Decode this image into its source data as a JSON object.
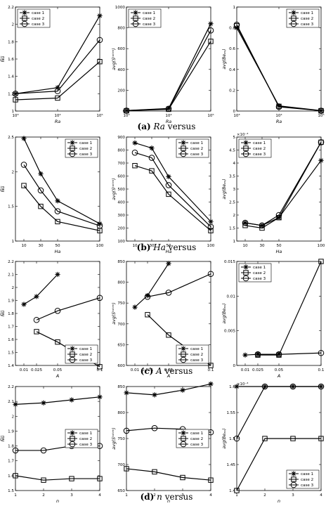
{
  "captions": [
    {
      "letter": "(a)",
      "var": "Ra",
      "rest": " versus"
    },
    {
      "letter": "(b)",
      "var": "Ha",
      "rest": " versus"
    },
    {
      "letter": "(c)",
      "var": "A",
      "rest": " versus"
    },
    {
      "letter": "(d)",
      "var": "n",
      "rest": " versus"
    }
  ],
  "legend_labels": [
    "case 1",
    "case 2",
    "case 3"
  ],
  "chart_data": [
    {
      "type": "line",
      "xscale": "log",
      "xlim": [
        1000,
        100000
      ],
      "ylim": [
        1,
        2.2
      ],
      "x": [
        1000,
        10000,
        100000
      ],
      "xticks": [
        1000,
        10000,
        100000
      ],
      "xticklabels": [
        "10³",
        "10⁴",
        "10⁵"
      ],
      "yticks": [
        1,
        1.2,
        1.4,
        1.6,
        1.8,
        2,
        2.2
      ],
      "yticklabels": [
        "1",
        "1.2",
        "1.4",
        "1.6",
        "1.8",
        "2",
        "2.2"
      ],
      "xlabel": "Ra",
      "ylabel": "N̅u̅",
      "legend": "top-left",
      "series": [
        {
          "name": "case 1",
          "values": [
            1.2,
            1.27,
            2.1
          ]
        },
        {
          "name": "case 2",
          "values": [
            1.13,
            1.15,
            1.57
          ]
        },
        {
          "name": "case 3",
          "values": [
            1.2,
            1.23,
            1.82
          ]
        }
      ]
    },
    {
      "type": "line",
      "xscale": "log",
      "xlim": [
        1000,
        100000
      ],
      "ylim": [
        0,
        1000
      ],
      "x": [
        1000,
        10000,
        100000
      ],
      "xticks": [
        1000,
        10000,
        100000
      ],
      "xticklabels": [
        "10³",
        "10⁴",
        "10⁵"
      ],
      "yticks": [
        0,
        200,
        400,
        600,
        800,
        1000
      ],
      "yticklabels": [
        "0",
        "200",
        "400",
        "600",
        "800",
        "1000"
      ],
      "xlabel": "Ra",
      "ylabel": "avg(Sᵗᵒᵗᵉⁿ)",
      "legend": "top-left",
      "series": [
        {
          "name": "case 1",
          "values": [
            5,
            25,
            840
          ]
        },
        {
          "name": "case 2",
          "values": [
            3,
            17,
            670
          ]
        },
        {
          "name": "case 3",
          "values": [
            4,
            22,
            775
          ]
        }
      ]
    },
    {
      "type": "line",
      "xscale": "log",
      "xlim": [
        1000,
        100000
      ],
      "ylim": [
        0,
        1
      ],
      "x": [
        1000,
        10000,
        100000
      ],
      "xticks": [
        1000,
        10000,
        100000
      ],
      "xticklabels": [
        "10³",
        "10⁴",
        "10⁵"
      ],
      "yticks": [
        0,
        0.2,
        0.4,
        0.6,
        0.8,
        1
      ],
      "yticklabels": [
        "0",
        "0.2",
        "0.4",
        "0.6",
        "0.8",
        "1"
      ],
      "xlabel": "Ra",
      "ylabel": "avg(Beₐᵥ)",
      "legend": "top-right",
      "series": [
        {
          "name": "case 1",
          "values": [
            0.8,
            0.05,
            0.004
          ]
        },
        {
          "name": "case 2",
          "values": [
            0.82,
            0.045,
            0.003
          ]
        },
        {
          "name": "case 3",
          "values": [
            0.83,
            0.04,
            0.003
          ]
        }
      ]
    },
    {
      "type": "line",
      "xscale": "linear",
      "xlim": [
        0,
        100
      ],
      "ylim": [
        1,
        2.5
      ],
      "x": [
        10,
        30,
        50,
        100
      ],
      "xticks": [
        10,
        30,
        50,
        100
      ],
      "xticklabels": [
        "10",
        "30",
        "50",
        "100"
      ],
      "yticks": [
        1,
        1.5,
        2,
        2.5
      ],
      "yticklabels": [
        "1",
        "1.5",
        "2",
        "2.5"
      ],
      "xlabel": "Ha",
      "ylabel": "N̅u̅",
      "legend": "top-right",
      "series": [
        {
          "name": "case 1",
          "values": [
            2.48,
            1.97,
            1.58,
            1.25
          ]
        },
        {
          "name": "case 2",
          "values": [
            1.8,
            1.5,
            1.28,
            1.15
          ]
        },
        {
          "name": "case 3",
          "values": [
            2.1,
            1.73,
            1.43,
            1.22
          ]
        }
      ]
    },
    {
      "type": "line",
      "xscale": "linear",
      "xlim": [
        0,
        100
      ],
      "ylim": [
        100,
        900
      ],
      "x": [
        10,
        30,
        50,
        100
      ],
      "xticks": [
        10,
        30,
        50,
        100
      ],
      "xticklabels": [
        "10",
        "30",
        "50",
        "100"
      ],
      "yticks": [
        100,
        200,
        300,
        400,
        500,
        600,
        700,
        800,
        900
      ],
      "yticklabels": [
        "100",
        "200",
        "300",
        "400",
        "500",
        "600",
        "700",
        "800",
        "900"
      ],
      "xlabel": "Ha",
      "ylabel": "avg(Sᵗᵒᵗᵉⁿ)",
      "legend": "top-right",
      "series": [
        {
          "name": "case 1",
          "values": [
            855,
            815,
            595,
            250
          ]
        },
        {
          "name": "case 2",
          "values": [
            680,
            640,
            460,
            180
          ]
        },
        {
          "name": "case 3",
          "values": [
            780,
            740,
            530,
            210
          ]
        }
      ]
    },
    {
      "type": "line",
      "xscale": "linear",
      "xlim": [
        0,
        100
      ],
      "ylim": [
        0.001,
        0.005
      ],
      "x": [
        10,
        30,
        50,
        100
      ],
      "xticks": [
        10,
        30,
        50,
        100
      ],
      "xticklabels": [
        "10",
        "30",
        "50",
        "100"
      ],
      "yticks": [
        0.001,
        0.0015,
        0.002,
        0.0025,
        0.003,
        0.0035,
        0.004,
        0.0045,
        0.005
      ],
      "yticklabels": [
        "1",
        "1.5",
        "2",
        "2.5",
        "3",
        "3.5",
        "4",
        "4.5",
        "5"
      ],
      "yscalelabel": "×10⁻³",
      "xlabel": "Ha",
      "ylabel": "avg(Beₐᵥ)",
      "legend": "top-left",
      "series": [
        {
          "name": "case 1",
          "values": [
            0.0017,
            0.0016,
            0.0019,
            0.0041
          ]
        },
        {
          "name": "case 2",
          "values": [
            0.0016,
            0.0015,
            0.0019,
            0.0048
          ]
        },
        {
          "name": "case 3",
          "values": [
            0.0017,
            0.0016,
            0.002,
            0.0048
          ]
        }
      ]
    },
    {
      "type": "line",
      "xscale": "linear",
      "xlim": [
        0,
        0.1
      ],
      "ylim": [
        1.4,
        2.2
      ],
      "x": [
        0.01,
        0.025,
        0.05,
        0.1
      ],
      "xticks": [
        0.01,
        0.025,
        0.05,
        0.1
      ],
      "xticklabels": [
        "0.01",
        "0.025",
        "0.05",
        "0.1"
      ],
      "yticks": [
        1.4,
        1.5,
        1.6,
        1.7,
        1.8,
        1.9,
        2,
        2.1,
        2.2
      ],
      "yticklabels": [
        "1.4",
        "1.5",
        "1.6",
        "1.7",
        "1.8",
        "1.9",
        "2",
        "2.1",
        "2.2"
      ],
      "xlabel": "A",
      "ylabel": "N̅u̅",
      "legend": "bottom-right",
      "series": [
        {
          "name": "case 1",
          "x": [
            0.01,
            0.025,
            0.05
          ],
          "values": [
            1.87,
            1.93,
            2.1
          ]
        },
        {
          "name": "case 2",
          "x": [
            0.025,
            0.05,
            0.1
          ],
          "values": [
            1.66,
            1.58,
            1.39
          ]
        },
        {
          "name": "case 3",
          "x": [
            0.025,
            0.05,
            0.1
          ],
          "values": [
            1.75,
            1.82,
            1.92
          ]
        }
      ]
    },
    {
      "type": "line",
      "xscale": "linear",
      "xlim": [
        0,
        0.1
      ],
      "ylim": [
        600,
        850
      ],
      "x": [
        0.01,
        0.025,
        0.05,
        0.1
      ],
      "xticks": [
        0.01,
        0.025,
        0.05,
        0.1
      ],
      "xticklabels": [
        "0.01",
        "0.025",
        "0.05",
        "0.1"
      ],
      "yticks": [
        600,
        650,
        700,
        750,
        800,
        850
      ],
      "yticklabels": [
        "600",
        "650",
        "700",
        "750",
        "800",
        "850"
      ],
      "xlabel": "A",
      "ylabel": "avg(Sᵗᵒᵗᵉⁿ)",
      "legend": "bottom-right",
      "series": [
        {
          "name": "case 1",
          "x": [
            0.01,
            0.025,
            0.05
          ],
          "values": [
            740,
            768,
            845
          ]
        },
        {
          "name": "case 2",
          "x": [
            0.025,
            0.05,
            0.1
          ],
          "values": [
            722,
            673,
            600
          ]
        },
        {
          "name": "case 3",
          "x": [
            0.025,
            0.05,
            0.1
          ],
          "values": [
            765,
            775,
            820
          ]
        }
      ]
    },
    {
      "type": "line",
      "xscale": "linear",
      "xlim": [
        0,
        0.1
      ],
      "ylim": [
        0,
        0.015
      ],
      "x": [
        0.01,
        0.025,
        0.05,
        0.1
      ],
      "xticks": [
        0.01,
        0.025,
        0.05,
        0.1
      ],
      "xticklabels": [
        "0.01",
        "0.025",
        "0.05",
        "0.1"
      ],
      "yticks": [
        0,
        0.005,
        0.01,
        0.015
      ],
      "yticklabels": [
        "0",
        "0.005",
        "0.01",
        "0.015"
      ],
      "xlabel": "A",
      "ylabel": "avg(Beₐᵥ)",
      "legend": "top-left",
      "series": [
        {
          "name": "case 1",
          "x": [
            0.01,
            0.025,
            0.05
          ],
          "values": [
            0.0015,
            0.0016,
            0.0016
          ]
        },
        {
          "name": "case 2",
          "x": [
            0.025,
            0.05,
            0.1
          ],
          "values": [
            0.0015,
            0.0015,
            0.015
          ]
        },
        {
          "name": "case 3",
          "x": [
            0.025,
            0.05,
            0.1
          ],
          "values": [
            0.0016,
            0.0016,
            0.0018
          ]
        }
      ]
    },
    {
      "type": "line",
      "xscale": "linear",
      "xlim": [
        1,
        4
      ],
      "ylim": [
        1.5,
        2.2
      ],
      "x": [
        1,
        2,
        3,
        4
      ],
      "xticks": [
        1,
        2,
        3,
        4
      ],
      "xticklabels": [
        "1",
        "2",
        "3",
        "4"
      ],
      "yticks": [
        1.5,
        1.6,
        1.7,
        1.8,
        1.9,
        2,
        2.1,
        2.2
      ],
      "yticklabels": [
        "1.5",
        "1.6",
        "1.7",
        "1.8",
        "1.9",
        "2",
        "2.1",
        "2.2"
      ],
      "xlabel": "n",
      "ylabel": "N̅u̅",
      "legend": "middle-right",
      "series": [
        {
          "name": "case 1",
          "values": [
            2.08,
            2.09,
            2.11,
            2.13
          ]
        },
        {
          "name": "case 2",
          "values": [
            1.6,
            1.57,
            1.58,
            1.58
          ]
        },
        {
          "name": "case 3",
          "values": [
            1.77,
            1.77,
            1.8,
            1.8
          ]
        }
      ]
    },
    {
      "type": "line",
      "xscale": "linear",
      "xlim": [
        1,
        4
      ],
      "ylim": [
        650,
        850
      ],
      "x": [
        1,
        2,
        3,
        4
      ],
      "xticks": [
        1,
        2,
        3,
        4
      ],
      "xticklabels": [
        "1",
        "2",
        "3",
        "4"
      ],
      "yticks": [
        650,
        700,
        750,
        800,
        850
      ],
      "yticklabels": [
        "650",
        "700",
        "750",
        "800",
        "850"
      ],
      "xlabel": "n",
      "ylabel": "avg(Sᵗᵒᵗᵉⁿ)",
      "legend": "middle-right",
      "series": [
        {
          "name": "case 1",
          "values": [
            838,
            834,
            843,
            855
          ]
        },
        {
          "name": "case 2",
          "values": [
            692,
            686,
            675,
            670
          ]
        },
        {
          "name": "case 3",
          "values": [
            765,
            770,
            768,
            762
          ]
        }
      ]
    },
    {
      "type": "line",
      "xscale": "linear",
      "xlim": [
        1,
        4
      ],
      "ylim": [
        0.0014,
        0.0016
      ],
      "x": [
        1,
        2,
        3,
        4
      ],
      "xticks": [
        1,
        2,
        3,
        4
      ],
      "xticklabels": [
        "1",
        "2",
        "3",
        "4"
      ],
      "yticks": [
        0.0014,
        0.00145,
        0.0015,
        0.00155,
        0.0016
      ],
      "yticklabels": [
        "1.4",
        "1.45",
        "1.5",
        "1.55",
        "1.6"
      ],
      "yscalelabel": "×10⁻³",
      "xlabel": "n",
      "ylabel": "avg(Beₐᵥ)",
      "legend": "bottom-right",
      "series": [
        {
          "name": "case 1",
          "values": [
            0.0016,
            0.0016,
            0.0016,
            0.0016
          ]
        },
        {
          "name": "case 2",
          "values": [
            0.0014,
            0.0015,
            0.0015,
            0.0015
          ]
        },
        {
          "name": "case 3",
          "values": [
            0.0015,
            0.0016,
            0.0016,
            0.0016
          ]
        }
      ]
    }
  ]
}
